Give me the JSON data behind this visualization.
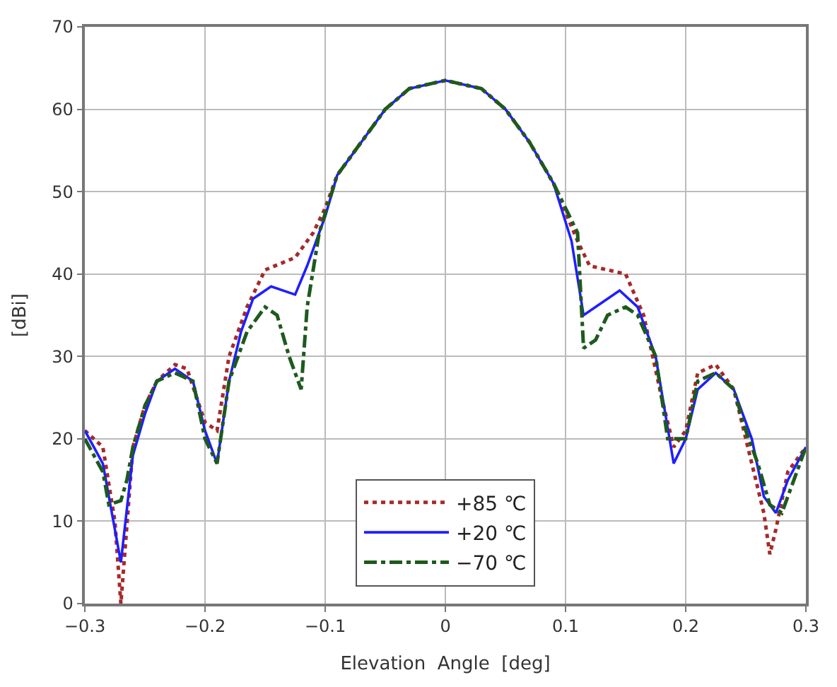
{
  "chart_data": {
    "type": "line",
    "xlabel": "Elevation  Angle  [deg]",
    "ylabel": "[dBi]",
    "xlim": [
      -0.3,
      0.3
    ],
    "xticks": [
      {
        "value": -0.3,
        "label": "−0.3"
      },
      {
        "value": -0.2,
        "label": "−0.2"
      },
      {
        "value": -0.1,
        "label": "−0.1"
      },
      0,
      0.1,
      0.2,
      0.3
    ],
    "ylim": [
      0,
      70
    ],
    "yticks": [
      0,
      10,
      20,
      30,
      40,
      50,
      60,
      70
    ],
    "grid": true,
    "legend": "bottom",
    "marker": "none",
    "series": [
      {
        "name": "+85 ℃",
        "color": "#a52a2a",
        "line_style": "dotted",
        "x": [
          -0.3,
          -0.285,
          -0.275,
          -0.27,
          -0.26,
          -0.25,
          -0.24,
          -0.225,
          -0.215,
          -0.2,
          -0.19,
          -0.18,
          -0.165,
          -0.15,
          -0.125,
          -0.11,
          -0.1,
          -0.09,
          -0.07,
          -0.05,
          -0.03,
          0,
          0.03,
          0.05,
          0.07,
          0.09,
          0.11,
          0.12,
          0.15,
          0.165,
          0.18,
          0.19,
          0.2,
          0.21,
          0.225,
          0.24,
          0.25,
          0.265,
          0.27,
          0.275,
          0.285,
          0.3
        ],
        "values": [
          21,
          19,
          10,
          0,
          19,
          24,
          27,
          29,
          28.5,
          22,
          21,
          30,
          36,
          40.5,
          42,
          45,
          48,
          52,
          56,
          60,
          62.5,
          63.5,
          62.5,
          60,
          56,
          51,
          44,
          41,
          40,
          35,
          25,
          19,
          21,
          28,
          29,
          26,
          20,
          11,
          6,
          9,
          16,
          19
        ]
      },
      {
        "name": "+20 ℃",
        "color": "#1f1fff",
        "line_style": "solid",
        "x": [
          -0.3,
          -0.285,
          -0.27,
          -0.26,
          -0.25,
          -0.24,
          -0.225,
          -0.21,
          -0.2,
          -0.19,
          -0.18,
          -0.17,
          -0.16,
          -0.145,
          -0.125,
          -0.115,
          -0.1,
          -0.09,
          -0.07,
          -0.05,
          -0.03,
          0,
          0.03,
          0.05,
          0.07,
          0.09,
          0.105,
          0.115,
          0.13,
          0.145,
          0.16,
          0.175,
          0.19,
          0.2,
          0.21,
          0.225,
          0.24,
          0.255,
          0.265,
          0.275,
          0.285,
          0.3
        ],
        "values": [
          21,
          17,
          5,
          18,
          23,
          27,
          28.5,
          27,
          21,
          17,
          27,
          33,
          37,
          38.5,
          37.5,
          41,
          47,
          52,
          56,
          60,
          62.5,
          63.5,
          62.5,
          60,
          56,
          51,
          44,
          35,
          36.5,
          38,
          36,
          30,
          17,
          20,
          26,
          28,
          26,
          20,
          13,
          11,
          15,
          19
        ]
      },
      {
        "name": "−70 ℃",
        "color": "#1e5a1e",
        "line_style": "dashdot",
        "x": [
          -0.3,
          -0.285,
          -0.28,
          -0.27,
          -0.265,
          -0.26,
          -0.25,
          -0.24,
          -0.225,
          -0.21,
          -0.2,
          -0.19,
          -0.18,
          -0.165,
          -0.15,
          -0.14,
          -0.13,
          -0.12,
          -0.115,
          -0.105,
          -0.09,
          -0.07,
          -0.05,
          -0.03,
          0,
          0.03,
          0.05,
          0.07,
          0.09,
          0.11,
          0.115,
          0.125,
          0.135,
          0.15,
          0.16,
          0.175,
          0.185,
          0.2,
          0.21,
          0.225,
          0.24,
          0.25,
          0.26,
          0.27,
          0.28,
          0.29,
          0.3
        ],
        "values": [
          20,
          16,
          12,
          12.5,
          15,
          19,
          24,
          27,
          28,
          27,
          20,
          17,
          27,
          33,
          36,
          35,
          30,
          26,
          36,
          45,
          52,
          56,
          60,
          62.5,
          63.5,
          62.5,
          60,
          56,
          51,
          45,
          31,
          32,
          35,
          36,
          35,
          30,
          20,
          20,
          27,
          28,
          26,
          21,
          17,
          12,
          11,
          15,
          19
        ]
      }
    ]
  }
}
